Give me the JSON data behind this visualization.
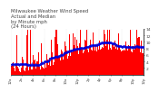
{
  "title": "Milwaukee Weather Wind Speed  Actual and Median  by Minute mph  (24 Hours)",
  "title_line1": "Milwaukee Weather Wind Speed",
  "title_line2": "Actual and Median",
  "title_line3": "by Minute mph",
  "title_line4": "(24 Hours)",
  "title_fontsize": 3.8,
  "title_color": "#444444",
  "background_color": "#ffffff",
  "plot_bg_color": "#ffffff",
  "bar_color": "#ff0000",
  "median_color": "#0000dd",
  "ylim": [
    0,
    14
  ],
  "yticks": [
    2,
    4,
    6,
    8,
    10,
    12,
    14
  ],
  "ytick_fontsize": 3.2,
  "xtick_fontsize": 2.8,
  "num_points": 1440,
  "grid_color": "#bbbbbb",
  "spine_color": "#000000",
  "seed": 12345
}
